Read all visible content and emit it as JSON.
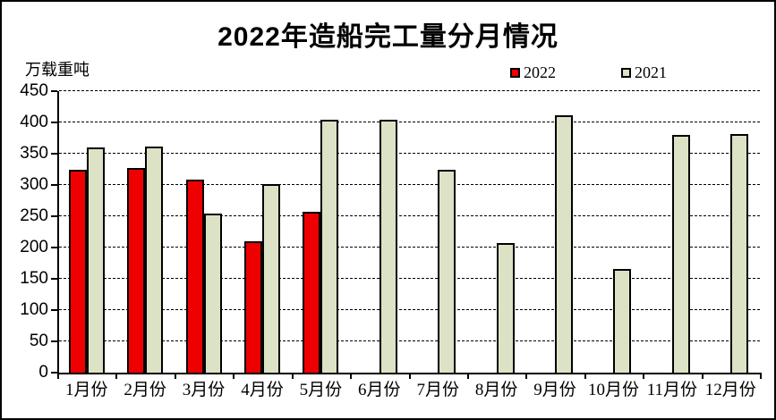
{
  "title": "2022年造船完工量分月情况",
  "y_unit_label": "万载重吨",
  "legend": [
    {
      "label": "2022",
      "color": "#ee0000"
    },
    {
      "label": "2021",
      "color": "#dce2c5"
    }
  ],
  "chart_data": {
    "type": "bar",
    "title": "2022年造船完工量分月情况",
    "ylabel": "万载重吨",
    "categories": [
      "1月份",
      "2月份",
      "3月份",
      "4月份",
      "5月份",
      "6月份",
      "7月份",
      "8月份",
      "9月份",
      "10月份",
      "11月份",
      "12月份"
    ],
    "series": [
      {
        "name": "2022",
        "color": "#ee0000",
        "values": [
          325,
          327,
          308,
          210,
          257,
          null,
          null,
          null,
          null,
          null,
          null,
          null
        ]
      },
      {
        "name": "2021",
        "color": "#dce2c5",
        "values": [
          360,
          362,
          255,
          302,
          404,
          405,
          325,
          207,
          412,
          166,
          380,
          382
        ]
      }
    ],
    "ylim": [
      0,
      450
    ],
    "yticks": [
      0,
      50,
      100,
      150,
      200,
      250,
      300,
      350,
      400,
      450
    ],
    "grid": true,
    "legend_position": "top"
  }
}
